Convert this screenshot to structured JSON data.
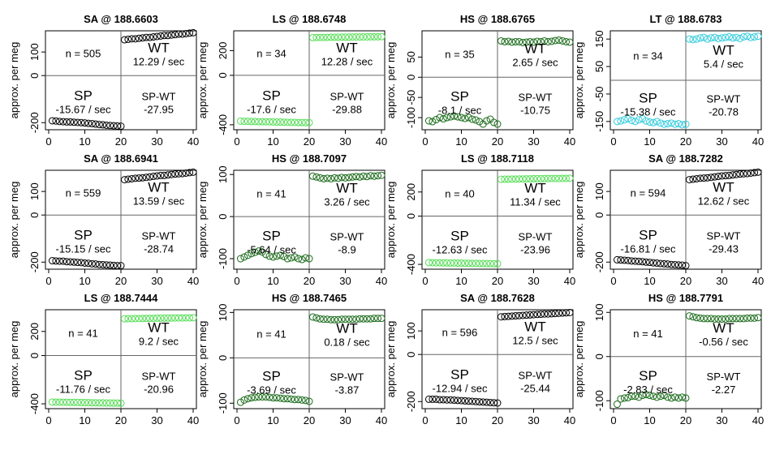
{
  "chart_data": [
    {
      "type": "scatter",
      "title": "SA @ 188.6603",
      "ylabel": "approx. per meg",
      "xlim": [
        0,
        40
      ],
      "ylim": [
        -230,
        190
      ],
      "yticks": [
        -200,
        0,
        100
      ],
      "color": "#000000",
      "n_label": "n = 505",
      "wt_label": "WT",
      "wt_rate": "12.29 / sec",
      "sp_label": "SP",
      "sp_rate": "-15.67 / sec",
      "spwt_label": "SP-WT",
      "spwt_value": "-27.95",
      "sp_values": [
        -192,
        -193,
        -195,
        -196,
        -197,
        -197,
        -198,
        -199,
        -200,
        -201,
        -203,
        -204,
        -206,
        -208,
        -209,
        -211,
        -212,
        -213,
        -214,
        -215
      ],
      "wt_values": [
        152,
        154,
        156,
        156,
        158,
        160,
        162,
        162,
        164,
        166,
        168,
        170,
        170,
        172,
        174,
        176,
        176,
        178,
        180,
        182
      ]
    },
    {
      "type": "scatter",
      "title": "LS @ 188.6748",
      "ylabel": "approx. per meg",
      "xlim": [
        0,
        40
      ],
      "ylim": [
        -440,
        360
      ],
      "yticks": [
        -400,
        0,
        200
      ],
      "color": "#55dd55",
      "n_label": "n = 34",
      "wt_label": "WT",
      "wt_rate": "12.28 / sec",
      "sp_label": "SP",
      "sp_rate": "-17.6 / sec",
      "spwt_label": "SP-WT",
      "spwt_value": "-29.88",
      "sp_values": [
        -370,
        -372,
        -372,
        -374,
        -374,
        -375,
        -375,
        -376,
        -376,
        -377,
        -378,
        -378,
        -379,
        -380,
        -380,
        -381,
        -382,
        -382,
        -383,
        -383
      ],
      "wt_values": [
        305,
        306,
        306,
        307,
        307,
        308,
        308,
        308,
        309,
        309,
        309,
        310,
        310,
        310,
        311,
        311,
        312,
        312,
        312,
        313
      ]
    },
    {
      "type": "scatter",
      "title": "HS @ 188.6765",
      "ylabel": "approx. per meg",
      "xlim": [
        0,
        40
      ],
      "ylim": [
        -130,
        115
      ],
      "yticks": [
        -100,
        -50,
        0,
        50
      ],
      "color": "#1a6b1a",
      "n_label": "n = 35",
      "wt_label": "WT",
      "wt_rate": "2.65 / sec",
      "sp_label": "SP",
      "sp_rate": "-8.1 / sec",
      "spwt_label": "SP-WT",
      "spwt_value": "-10.75",
      "sp_values": [
        -108,
        -110,
        -105,
        -100,
        -103,
        -100,
        -98,
        -96,
        -98,
        -100,
        -102,
        -100,
        -104,
        -106,
        -110,
        -116,
        -108,
        -104,
        -112,
        -116
      ],
      "wt_values": [
        90,
        88,
        89,
        87,
        88,
        88,
        86,
        87,
        88,
        87,
        89,
        88,
        90,
        88,
        89,
        91,
        92,
        90,
        88,
        87
      ]
    },
    {
      "type": "scatter",
      "title": "LT @ 188.6783",
      "ylabel": "approx. per meg",
      "xlim": [
        0,
        40
      ],
      "ylim": [
        -180,
        180
      ],
      "yticks": [
        -150,
        -50,
        50,
        150
      ],
      "color": "#33ccdd",
      "n_label": "n = 34",
      "wt_label": "WT",
      "wt_rate": "5.4 / sec",
      "sp_label": "SP",
      "sp_rate": "-15.38 / sec",
      "spwt_label": "SP-WT",
      "spwt_value": "-20.78",
      "sp_values": [
        -150,
        -148,
        -144,
        -140,
        -146,
        -150,
        -144,
        -140,
        -148,
        -152,
        -154,
        -150,
        -156,
        -160,
        -158,
        -156,
        -160,
        -158,
        -162,
        -160
      ],
      "wt_values": [
        150,
        148,
        150,
        154,
        156,
        150,
        154,
        156,
        152,
        154,
        156,
        158,
        154,
        156,
        152,
        158,
        160,
        156,
        158,
        160
      ]
    },
    {
      "type": "scatter",
      "title": "SA @ 188.6941",
      "ylabel": "approx. per meg",
      "xlim": [
        0,
        40
      ],
      "ylim": [
        -230,
        190
      ],
      "yticks": [
        -200,
        0,
        100
      ],
      "color": "#000000",
      "n_label": "n = 559",
      "wt_label": "WT",
      "wt_rate": "13.59 / sec",
      "sp_label": "SP",
      "sp_rate": "-15.15 / sec",
      "spwt_label": "SP-WT",
      "spwt_value": "-28.74",
      "sp_values": [
        -194,
        -195,
        -196,
        -196,
        -198,
        -199,
        -200,
        -201,
        -202,
        -204,
        -205,
        -207,
        -208,
        -210,
        -211,
        -212,
        -213,
        -214,
        -215,
        -215
      ],
      "wt_values": [
        150,
        152,
        154,
        156,
        157,
        158,
        160,
        162,
        164,
        166,
        168,
        168,
        170,
        172,
        174,
        175,
        176,
        178,
        180,
        182
      ]
    },
    {
      "type": "scatter",
      "title": "HS @ 188.7097",
      "ylabel": "approx. per meg",
      "xlim": [
        0,
        40
      ],
      "ylim": [
        -125,
        110
      ],
      "yticks": [
        -100,
        0,
        100
      ],
      "color": "#1a6b1a",
      "n_label": "n = 41",
      "wt_label": "WT",
      "wt_rate": "3.26 / sec",
      "sp_label": "SP",
      "sp_rate": "-5.64 / sec",
      "spwt_label": "SP-WT",
      "spwt_value": "-8.9",
      "sp_values": [
        -100,
        -96,
        -92,
        -88,
        -85,
        -82,
        -84,
        -90,
        -94,
        -96,
        -94,
        -92,
        -95,
        -100,
        -98,
        -96,
        -100,
        -102,
        -98,
        -100
      ],
      "wt_values": [
        96,
        94,
        92,
        90,
        91,
        90,
        92,
        91,
        93,
        92,
        93,
        94,
        95,
        94,
        96,
        95,
        97,
        96,
        97,
        98
      ]
    },
    {
      "type": "scatter",
      "title": "LS @ 188.7118",
      "ylabel": "approx. per meg",
      "xlim": [
        0,
        40
      ],
      "ylim": [
        -440,
        380
      ],
      "yticks": [
        -400,
        0,
        200
      ],
      "color": "#55dd55",
      "n_label": "n = 40",
      "wt_label": "WT",
      "wt_rate": "11.34 / sec",
      "sp_label": "SP",
      "sp_rate": "-12.63 / sec",
      "spwt_label": "SP-WT",
      "spwt_value": "-23.96",
      "sp_values": [
        -385,
        -386,
        -387,
        -387,
        -388,
        -388,
        -389,
        -389,
        -390,
        -390,
        -391,
        -391,
        -392,
        -392,
        -393,
        -393,
        -394,
        -394,
        -395,
        -395
      ],
      "wt_values": [
        305,
        306,
        306,
        307,
        307,
        308,
        308,
        309,
        309,
        310,
        310,
        310,
        311,
        311,
        312,
        312,
        312,
        313,
        313,
        314
      ]
    },
    {
      "type": "scatter",
      "title": "SA @ 188.7282",
      "ylabel": "approx. per meg",
      "xlim": [
        0,
        40
      ],
      "ylim": [
        -230,
        190
      ],
      "yticks": [
        -200,
        0,
        100
      ],
      "color": "#000000",
      "n_label": "n = 594",
      "wt_label": "WT",
      "wt_rate": "12.62 / sec",
      "sp_label": "SP",
      "sp_rate": "-16.81 / sec",
      "spwt_label": "SP-WT",
      "spwt_value": "-29.43",
      "sp_values": [
        -190,
        -191,
        -192,
        -193,
        -195,
        -196,
        -197,
        -198,
        -200,
        -201,
        -203,
        -204,
        -206,
        -207,
        -208,
        -210,
        -211,
        -212,
        -213,
        -215
      ],
      "wt_values": [
        150,
        152,
        154,
        156,
        157,
        158,
        160,
        162,
        164,
        166,
        167,
        168,
        170,
        172,
        174,
        175,
        176,
        178,
        180,
        182
      ]
    },
    {
      "type": "scatter",
      "title": "LS @ 188.7444",
      "ylabel": "approx. per meg",
      "xlim": [
        0,
        40
      ],
      "ylim": [
        -440,
        380
      ],
      "yticks": [
        -400,
        0,
        200
      ],
      "color": "#55dd55",
      "n_label": "n = 41",
      "wt_label": "WT",
      "wt_rate": "9.2 / sec",
      "sp_label": "SP",
      "sp_rate": "-11.76 / sec",
      "spwt_label": "SP-WT",
      "spwt_value": "-20.96",
      "sp_values": [
        -385,
        -386,
        -386,
        -387,
        -387,
        -388,
        -388,
        -389,
        -389,
        -390,
        -390,
        -391,
        -391,
        -392,
        -392,
        -393,
        -393,
        -394,
        -394,
        -395
      ],
      "wt_values": [
        305,
        306,
        306,
        307,
        307,
        308,
        308,
        309,
        309,
        310,
        310,
        310,
        311,
        311,
        312,
        312,
        312,
        313,
        313,
        314
      ]
    },
    {
      "type": "scatter",
      "title": "HS @ 188.7465",
      "ylabel": "approx. per meg",
      "xlim": [
        0,
        40
      ],
      "ylim": [
        -112,
        106
      ],
      "yticks": [
        -100,
        0,
        100
      ],
      "color": "#1a6b1a",
      "n_label": "n = 41",
      "wt_label": "WT",
      "wt_rate": "0.18 / sec",
      "sp_label": "SP",
      "sp_rate": "-3.69 / sec",
      "spwt_label": "SP-WT",
      "spwt_value": "-3.87",
      "sp_values": [
        -98,
        -93,
        -90,
        -88,
        -87,
        -86,
        -86,
        -86,
        -87,
        -88,
        -88,
        -89,
        -90,
        -90,
        -91,
        -92,
        -92,
        -93,
        -94,
        -96
      ],
      "wt_values": [
        90,
        88,
        86,
        85,
        85,
        84,
        84,
        84,
        85,
        85,
        85,
        85,
        85,
        86,
        86,
        86,
        86,
        87,
        87,
        87
      ]
    },
    {
      "type": "scatter",
      "title": "SA @ 188.7628",
      "ylabel": "approx. per meg",
      "xlim": [
        0,
        40
      ],
      "ylim": [
        -230,
        190
      ],
      "yticks": [
        -200,
        0,
        100
      ],
      "color": "#000000",
      "n_label": "n = 596",
      "wt_label": "WT",
      "wt_rate": "12.5 / sec",
      "sp_label": "SP",
      "sp_rate": "-12.94 / sec",
      "spwt_label": "SP-WT",
      "spwt_value": "-25.44",
      "sp_values": [
        -190,
        -190,
        -190,
        -192,
        -192,
        -193,
        -193,
        -194,
        -195,
        -196,
        -197,
        -198,
        -199,
        -200,
        -201,
        -202,
        -203,
        -204,
        -205,
        -206
      ],
      "wt_values": [
        160,
        161,
        162,
        163,
        164,
        165,
        166,
        167,
        168,
        169,
        170,
        171,
        172,
        172,
        173,
        174,
        175,
        176,
        177,
        178
      ]
    },
    {
      "type": "scatter",
      "title": "HS @ 188.7791",
      "ylabel": "approx. per meg",
      "xlim": [
        0,
        40
      ],
      "ylim": [
        -118,
        106
      ],
      "yticks": [
        -100,
        0,
        100
      ],
      "color": "#1a6b1a",
      "n_label": "n = 41",
      "wt_label": "WT",
      "wt_rate": "-0.56 / sec",
      "sp_label": "SP",
      "sp_rate": "-2.83 / sec",
      "spwt_label": "SP-WT",
      "spwt_value": "-2.27",
      "sp_values": [
        -108,
        -96,
        -94,
        -93,
        -90,
        -90,
        -92,
        -88,
        -86,
        -88,
        -90,
        -92,
        -90,
        -88,
        -92,
        -94,
        -92,
        -94,
        -92,
        -94
      ],
      "wt_values": [
        92,
        90,
        88,
        87,
        86,
        86,
        86,
        85,
        85,
        85,
        85,
        86,
        86,
        86,
        86,
        86,
        87,
        87,
        87,
        88
      ]
    }
  ]
}
